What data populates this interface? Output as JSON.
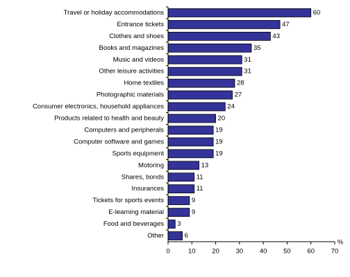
{
  "chart_data": {
    "type": "barh",
    "categories": [
      "Travel or holiday accommodations",
      "Entrance tickets",
      "Clothes and shoes",
      "Books and magazines",
      "Music and videos",
      "Other leisure activities",
      "Home textiles",
      "Photographic materials",
      "Consumer electronics, household appliances",
      "Products related to health and beauty",
      "Computers and peripherals",
      "Computer software and games",
      "Sports equipment",
      "Motoring",
      "Shares, bonds",
      "Insurances",
      "Tickets for sports events",
      "E-learning material",
      "Food and beverages",
      "Other"
    ],
    "values": [
      60,
      47,
      43,
      35,
      31,
      31,
      28,
      27,
      24,
      20,
      19,
      19,
      19,
      13,
      11,
      11,
      9,
      9,
      3,
      6
    ],
    "color": "#333399",
    "xlabel": "%",
    "xlim": [
      0,
      70
    ],
    "xticks": [
      0,
      10,
      20,
      30,
      40,
      50,
      60,
      70
    ],
    "grid": false
  }
}
